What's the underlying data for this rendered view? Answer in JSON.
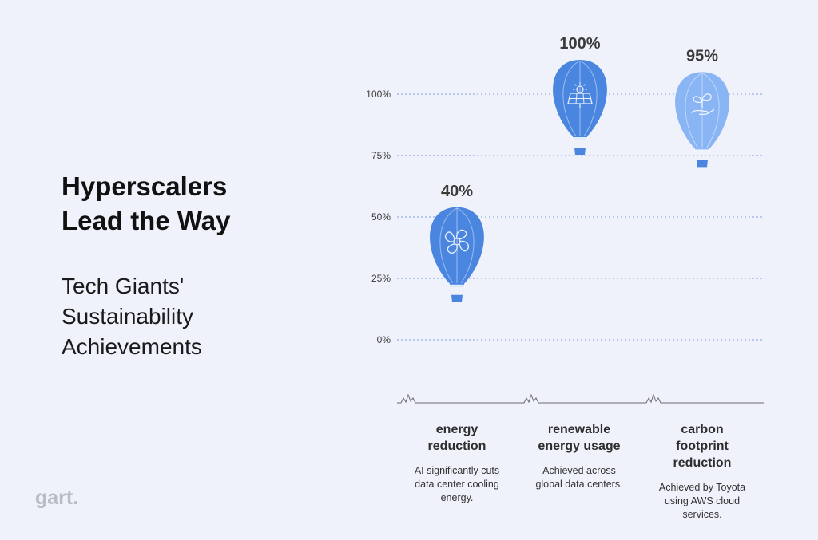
{
  "title_lines": [
    "Hyperscalers",
    "Lead the Way"
  ],
  "subtitle_lines": [
    "Tech Giants'",
    "Sustainability",
    "Achievements"
  ],
  "logo": "gart.",
  "chart_data": {
    "type": "bar",
    "style": "hot-air-balloon pictogram",
    "categories": [
      "energy reduction",
      "renewable energy usage",
      "carbon footprint reduction"
    ],
    "values": [
      40,
      100,
      95
    ],
    "value_labels": [
      "40%",
      "100%",
      "95%"
    ],
    "descriptions": [
      "AI significantly cuts data center cooling energy.",
      "Achieved across global data centers.",
      "Achieved by Toyota using AWS cloud services."
    ],
    "category_label_lines": [
      [
        "energy",
        "reduction"
      ],
      [
        "renewable",
        "energy usage"
      ],
      [
        "carbon",
        "footprint",
        "reduction"
      ]
    ],
    "description_lines": [
      [
        "AI significantly cuts",
        "data center cooling",
        "energy."
      ],
      [
        "Achieved across",
        "global data centers."
      ],
      [
        "Achieved by Toyota",
        "using AWS cloud",
        "services."
      ]
    ],
    "icons": [
      "fan-icon",
      "solar-panel-icon",
      "plant-hand-icon"
    ],
    "colors": [
      "#4a86e0",
      "#4a86e0",
      "#8ab5f5"
    ],
    "y_ticks": [
      0,
      25,
      50,
      75,
      100
    ],
    "y_tick_labels": [
      "0%",
      "25%",
      "50%",
      "75%",
      "100%"
    ],
    "ylim": [
      0,
      100
    ],
    "grid": true,
    "grid_style": "dotted",
    "axis_color": "#7f9fdc"
  }
}
